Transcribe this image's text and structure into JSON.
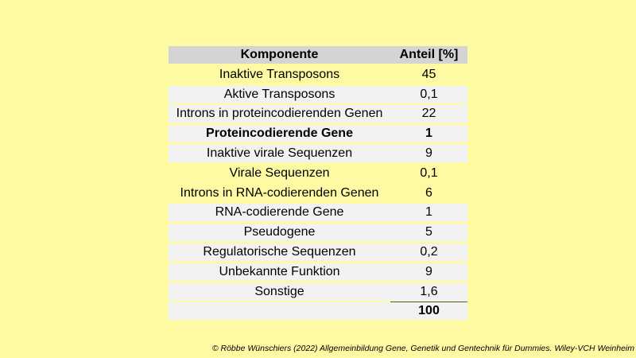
{
  "table": {
    "headers": [
      "Komponente",
      "Anteil [%]"
    ],
    "rows": [
      {
        "komponente": "Inaktive Transposons",
        "anteil": "45"
      },
      {
        "komponente": "Aktive Transposons",
        "anteil": "0,1"
      },
      {
        "komponente": "Introns in proteincodierenden Genen",
        "anteil": "22"
      },
      {
        "komponente": "Proteincodierende Gene",
        "anteil": "1"
      },
      {
        "komponente": "Inaktive virale Sequenzen",
        "anteil": "9"
      },
      {
        "komponente": "Virale Sequenzen",
        "anteil": "0,1"
      },
      {
        "komponente": "Introns in RNA-codierenden Genen",
        "anteil": "6"
      },
      {
        "komponente": "RNA-codierende Gene",
        "anteil": "1"
      },
      {
        "komponente": "Pseudogene",
        "anteil": "5"
      },
      {
        "komponente": "Regulatorische Sequenzen",
        "anteil": "0,2"
      },
      {
        "komponente": "Unbekannte Funktion",
        "anteil": "9"
      },
      {
        "komponente": "Sonstige",
        "anteil": "1,6"
      }
    ],
    "total": "100"
  },
  "footer": {
    "copyright": "© Röbbe Wünschiers (2022) Allgemeinbildung Gene, Genetik und Gentechnik für Dummies. Wiley-VCH Weinheim"
  }
}
